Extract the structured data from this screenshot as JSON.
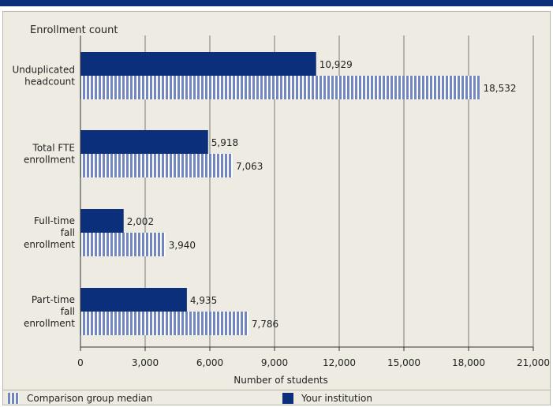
{
  "chart_data": {
    "type": "bar",
    "orientation": "horizontal",
    "title": "Enrollment count",
    "xlabel": "Number of students",
    "xlim": [
      0,
      21000
    ],
    "xticks": [
      "0",
      "3,000",
      "6,000",
      "9,000",
      "12,000",
      "15,000",
      "18,000",
      "21,000"
    ],
    "grid": true,
    "categories": [
      [
        "Unduplicated",
        "headcount"
      ],
      [
        "Total FTE",
        "enrollment"
      ],
      [
        "Full-time",
        "fall",
        "enrollment"
      ],
      [
        "Part-time",
        "fall",
        "enrollment"
      ]
    ],
    "series": [
      {
        "name": "Your institution",
        "values": [
          10929,
          5918,
          2002,
          4935
        ],
        "labels": [
          "10,929",
          "5,918",
          "2,002",
          "4,935"
        ],
        "color": "#0b2f7a",
        "pattern": "solid"
      },
      {
        "name": "Comparison group median",
        "values": [
          18532,
          7063,
          3940,
          7786
        ],
        "labels": [
          "18,532",
          "7,063",
          "3,940",
          "7,786"
        ],
        "color": "#7287bf",
        "pattern": "vertical-stripes"
      }
    ],
    "legend_position": "bottom"
  },
  "legend": {
    "comparison_label": "Comparison group median",
    "yours_label": "Your institution"
  },
  "colors": {
    "accent": "#0b2f7a",
    "comparison": "#7287bf",
    "background": "#eeebe2",
    "grid": "#7a7a7a"
  }
}
